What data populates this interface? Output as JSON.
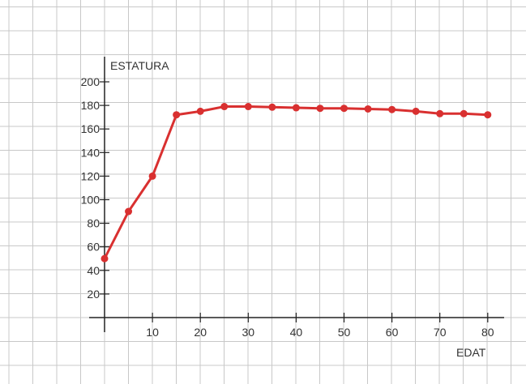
{
  "chart_data": {
    "type": "line",
    "title": "",
    "xlabel": "EDAT",
    "ylabel": "ESTATURA",
    "x": [
      0,
      5,
      10,
      15,
      20,
      25,
      30,
      35,
      40,
      45,
      50,
      55,
      60,
      65,
      70,
      75,
      80
    ],
    "series": [
      {
        "values": [
          50,
          90,
          120,
          172,
          175,
          179,
          179,
          178.5,
          178,
          177.5,
          177.5,
          177,
          176.5,
          175,
          173,
          173,
          172
        ]
      }
    ],
    "xticks": [
      10,
      20,
      30,
      40,
      50,
      60,
      70,
      80
    ],
    "yticks": [
      20,
      40,
      60,
      80,
      100,
      120,
      140,
      160,
      180,
      200
    ],
    "xlim": [
      0,
      80
    ],
    "ylim": [
      0,
      200
    ],
    "grid": true,
    "colors": {
      "line": "#d93030",
      "marker": "#d93030",
      "grid": "#c8c8c8",
      "axis": "#222222"
    }
  }
}
